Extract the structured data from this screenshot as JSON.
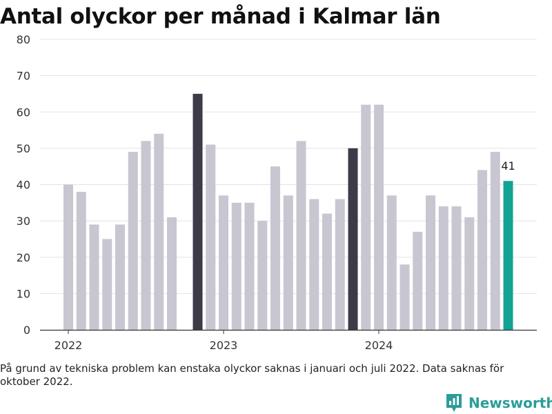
{
  "brand": {
    "name": "Newsworthy",
    "accent": "#2a9d9a"
  },
  "note": "På grund av tekniska problem kan enstaka olyckor saknas i januari och juli 2022. Data saknas för oktober 2022.",
  "chart_data": {
    "type": "bar",
    "title": "Antal olyckor per månad i Kalmar län",
    "xlabel": "",
    "ylabel": "",
    "ylim": [
      0,
      80
    ],
    "yticks": [
      0,
      10,
      20,
      30,
      40,
      50,
      60,
      70,
      80
    ],
    "xticks": [
      {
        "label": "2022",
        "month": "2022-01"
      },
      {
        "label": "2023",
        "month": "2023-01"
      },
      {
        "label": "2024",
        "month": "2024-01"
      }
    ],
    "grid": true,
    "colors": {
      "default": "#c8c6d1",
      "december": "#3d3b47",
      "latest": "#12a394"
    },
    "months": [
      "2022-01",
      "2022-02",
      "2022-03",
      "2022-04",
      "2022-05",
      "2022-06",
      "2022-07",
      "2022-08",
      "2022-09",
      "2022-10",
      "2022-11",
      "2022-12",
      "2023-01",
      "2023-02",
      "2023-03",
      "2023-04",
      "2023-05",
      "2023-06",
      "2023-07",
      "2023-08",
      "2023-09",
      "2023-10",
      "2023-11",
      "2023-12",
      "2024-01",
      "2024-02",
      "2024-03",
      "2024-04",
      "2024-05",
      "2024-06",
      "2024-07",
      "2024-08",
      "2024-09",
      "2024-10",
      "2024-11",
      "2024-12"
    ],
    "values": [
      40,
      38,
      29,
      25,
      29,
      49,
      52,
      54,
      31,
      null,
      65,
      51,
      37,
      35,
      35,
      30,
      45,
      37,
      52,
      36,
      32,
      36,
      50,
      62,
      62,
      37,
      18,
      27,
      37,
      34,
      34,
      31,
      44,
      49,
      41,
      null
    ],
    "highlights": {
      "2022-11": "december",
      "2023-11": "december",
      "2024-11": "latest"
    },
    "annotations": [
      {
        "month": "2024-11",
        "text": "41"
      }
    ]
  }
}
